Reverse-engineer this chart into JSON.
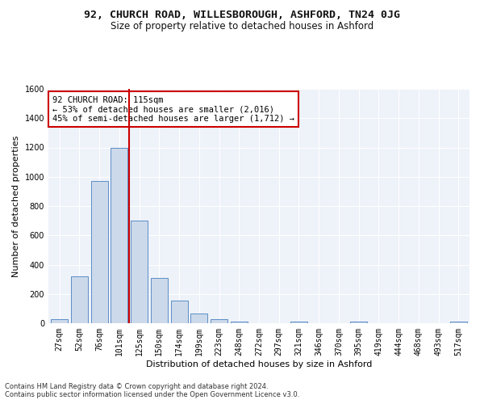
{
  "title": "92, CHURCH ROAD, WILLESBOROUGH, ASHFORD, TN24 0JG",
  "subtitle": "Size of property relative to detached houses in Ashford",
  "xlabel": "Distribution of detached houses by size in Ashford",
  "ylabel": "Number of detached properties",
  "bar_labels": [
    "27sqm",
    "52sqm",
    "76sqm",
    "101sqm",
    "125sqm",
    "150sqm",
    "174sqm",
    "199sqm",
    "223sqm",
    "248sqm",
    "272sqm",
    "297sqm",
    "321sqm",
    "346sqm",
    "370sqm",
    "395sqm",
    "419sqm",
    "444sqm",
    "468sqm",
    "493sqm",
    "517sqm"
  ],
  "bar_values": [
    30,
    320,
    970,
    1200,
    700,
    310,
    155,
    65,
    28,
    12,
    0,
    0,
    12,
    0,
    0,
    12,
    0,
    0,
    0,
    0,
    12
  ],
  "bar_color": "#ccd9ea",
  "bar_edge_color": "#5b8dc8",
  "vline_x": 3.5,
  "vline_color": "#cc0000",
  "annotation_text": "92 CHURCH ROAD: 115sqm\n← 53% of detached houses are smaller (2,016)\n45% of semi-detached houses are larger (1,712) →",
  "annotation_box_color": "#ffffff",
  "annotation_box_edge": "#cc0000",
  "ylim": [
    0,
    1600
  ],
  "yticks": [
    0,
    200,
    400,
    600,
    800,
    1000,
    1200,
    1400,
    1600
  ],
  "footer_line1": "Contains HM Land Registry data © Crown copyright and database right 2024.",
  "footer_line2": "Contains public sector information licensed under the Open Government Licence v3.0.",
  "bg_color": "#eef2f9",
  "title_fontsize": 9.5,
  "subtitle_fontsize": 8.5,
  "label_fontsize": 8,
  "tick_fontsize": 7,
  "annotation_fontsize": 7.5,
  "footer_fontsize": 6
}
